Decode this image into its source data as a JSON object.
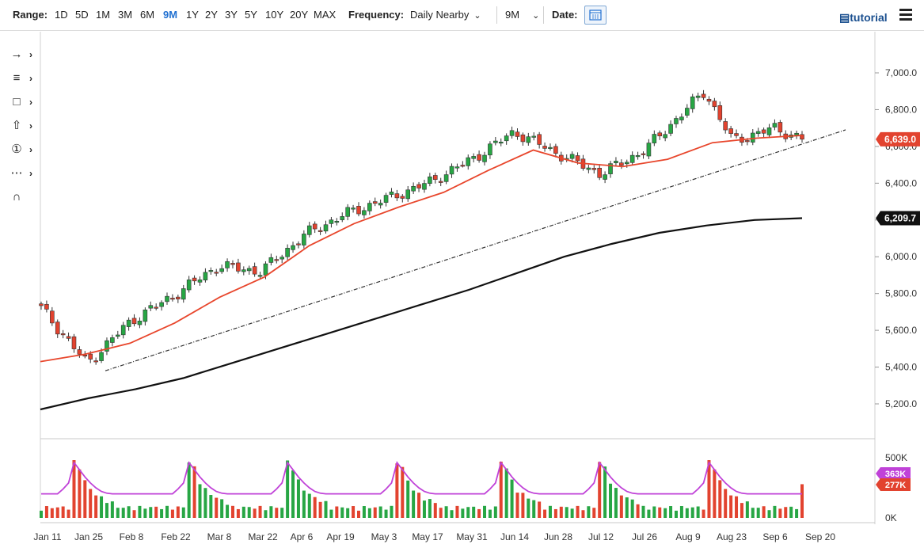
{
  "toolbar": {
    "range_label": "Range:",
    "ranges": [
      "1D",
      "5D",
      "1M",
      "3M",
      "6M",
      "9M",
      "1Y",
      "2Y",
      "3Y",
      "5Y",
      "10Y",
      "20Y",
      "MAX"
    ],
    "active_range": "9M",
    "frequency_label": "Frequency:",
    "frequency_value": "Daily Nearby",
    "period_value": "9M",
    "date_label": "Date:",
    "tutorial_label": "tutorial"
  },
  "side_tools": [
    {
      "icon": "line-tool-icon"
    },
    {
      "icon": "fib-tool-icon"
    },
    {
      "icon": "rectangle-tool-icon"
    },
    {
      "icon": "arrow-up-tool-icon"
    },
    {
      "icon": "number-marker-icon",
      "text": "1"
    },
    {
      "icon": "pattern-tool-icon"
    },
    {
      "icon": "magnet-icon"
    }
  ],
  "colors": {
    "up": "#27a644",
    "down": "#e2432f",
    "ma50": "#e8462c",
    "ma200": "#111111",
    "volume_ma": "#c042d8",
    "accent": "#1f6fd1"
  },
  "chart_data": {
    "type": "candlestick",
    "price_axis": {
      "ticks": [
        5200,
        5400,
        5600,
        5800,
        6000,
        6200,
        6400,
        6600,
        6800,
        7000
      ],
      "tick_labels": [
        "5,200.0",
        "5,400.0",
        "5,600.0",
        "5,800.0",
        "6,000.0",
        "6,200.0",
        "6,400.0",
        "6,600.0",
        "6,800.0",
        "7,000.0"
      ]
    },
    "last_price": {
      "value": 6639.0,
      "label": "6,639.0"
    },
    "ma200_last": {
      "value": 6209.7,
      "label": "6,209.7"
    },
    "volume_axis": {
      "tick_labels": [
        "500K",
        "0K"
      ]
    },
    "volume_ma_label": "363K",
    "volume_last_label": "277K",
    "x_labels": [
      "Jan 11",
      "Jan 25",
      "Feb 8",
      "Feb 22",
      "Mar 8",
      "Mar 22",
      "Apr 6",
      "Apr 19",
      "May 3",
      "May 17",
      "May 31",
      "Jun 14",
      "Jun 28",
      "Jul 12",
      "Jul 26",
      "Aug 9",
      "Aug 23",
      "Sep 6",
      "Sep 20"
    ],
    "key_points": [
      {
        "x": "Jan 11",
        "close": 5720
      },
      {
        "x": "Jan 25",
        "close": 5420
      },
      {
        "x": "Feb 8",
        "close": 5650
      },
      {
        "x": "Feb 22",
        "close": 5790
      },
      {
        "x": "Mar 8",
        "close": 5950
      },
      {
        "x": "Mar 22",
        "close": 5920
      },
      {
        "x": "Apr 6",
        "close": 6120
      },
      {
        "x": "Apr 19",
        "close": 6230
      },
      {
        "x": "May 3",
        "close": 6310
      },
      {
        "x": "May 17",
        "close": 6400
      },
      {
        "x": "May 31",
        "close": 6530
      },
      {
        "x": "Jun 14",
        "close": 6680
      },
      {
        "x": "Jun 28",
        "close": 6560
      },
      {
        "x": "Jul 12",
        "close": 6450
      },
      {
        "x": "Jul 26",
        "close": 6580
      },
      {
        "x": "Aug 9",
        "close": 6900
      },
      {
        "x": "Aug 23",
        "close": 6630
      },
      {
        "x": "Sep 6",
        "close": 6700
      },
      {
        "x": "Sep 13",
        "close": 6639
      }
    ],
    "ma50_points": [
      [
        0,
        5430
      ],
      [
        1,
        5470
      ],
      [
        2,
        5530
      ],
      [
        3,
        5640
      ],
      [
        4,
        5780
      ],
      [
        5,
        5890
      ],
      [
        6,
        6060
      ],
      [
        7,
        6180
      ],
      [
        8,
        6270
      ],
      [
        9,
        6350
      ],
      [
        10,
        6470
      ],
      [
        11,
        6580
      ],
      [
        12,
        6510
      ],
      [
        13,
        6490
      ],
      [
        14,
        6530
      ],
      [
        15,
        6620
      ],
      [
        16,
        6645
      ],
      [
        17,
        6660
      ]
    ],
    "ma200_points": [
      [
        0,
        5170
      ],
      [
        1,
        5230
      ],
      [
        2,
        5280
      ],
      [
        3,
        5340
      ],
      [
        4,
        5420
      ],
      [
        5,
        5500
      ],
      [
        6,
        5580
      ],
      [
        7,
        5660
      ],
      [
        8,
        5740
      ],
      [
        9,
        5820
      ],
      [
        10,
        5910
      ],
      [
        11,
        6000
      ],
      [
        12,
        6070
      ],
      [
        13,
        6130
      ],
      [
        14,
        6170
      ],
      [
        15,
        6200
      ],
      [
        16,
        6209.7
      ]
    ],
    "trendline": [
      [
        "Jan 25",
        5380
      ],
      [
        "Sep 20",
        6690
      ]
    ],
    "grid": false
  }
}
